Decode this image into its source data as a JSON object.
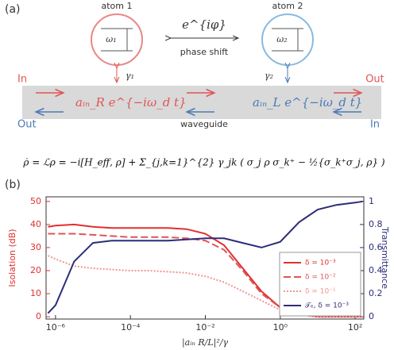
{
  "diagram": {
    "panel_a": "(a)",
    "atom1": "atom 1",
    "atom2": "atom 2",
    "omega1": "ω₁",
    "omega2": "ω₂",
    "phase": "e^{iφ}",
    "phase_label": "phase shift",
    "gamma1": "γ₁",
    "gamma2": "γ₂",
    "in_left": "In",
    "out_right": "Out",
    "out_left": "Out",
    "in_right": "In",
    "field_right": "aᵢₙ_R e^{−iω_d t}",
    "field_left": "aᵢₙ_L e^{−iω_d t}",
    "waveguide": "waveguide",
    "equation": "ρ̇ = ℒρ = −i[H_eff, ρ] + Σ_{j,k=1}^{2} γ_jk ( σ_j ρ σ_k⁺ − ½{σ_k⁺σ_j, ρ} )",
    "panel_b": "(b)"
  },
  "chart_data": {
    "type": "line",
    "xlabel": "|aᵢₙ R/L|²/γ",
    "ylabel": "Isolation (dB)",
    "y2label": "Transmittance",
    "xscale": "log",
    "xlim": [
      5.6e-07,
      170
    ],
    "xticks": [
      {
        "value": 1e-06,
        "label": "10⁻⁶"
      },
      {
        "value": 0.0001,
        "label": "10⁻⁴"
      },
      {
        "value": 0.01,
        "label": "10⁻²"
      },
      {
        "value": 1,
        "label": "10⁰"
      },
      {
        "value": 100,
        "label": "10²"
      }
    ],
    "ylim": [
      -1,
      52
    ],
    "yticks": [
      0,
      10,
      20,
      30,
      40,
      50
    ],
    "y2lim": [
      -0.02,
      1.04
    ],
    "y2ticks": [
      0,
      0.2,
      0.4,
      0.6,
      0.8,
      1
    ],
    "grid": false,
    "legend": "lower right",
    "x": [
      6.31e-07,
      1e-06,
      3.16e-06,
      1e-05,
      3.16e-05,
      0.0001,
      0.000316,
      0.001,
      0.00316,
      0.01,
      0.0316,
      0.1,
      0.316,
      1,
      3.16,
      10,
      31.6,
      100,
      158
    ],
    "series": [
      {
        "name": "δ = 10⁻³",
        "color": "#e03030",
        "style": "solid",
        "values": [
          39,
          39.5,
          40,
          39,
          38.5,
          38.5,
          38.5,
          38.5,
          38,
          36,
          31,
          21,
          11,
          4,
          1,
          0,
          0,
          0,
          0
        ]
      },
      {
        "name": "δ = 10⁻²",
        "color": "#e05555",
        "style": "dashed",
        "values": [
          36,
          36,
          36,
          35.5,
          35,
          34.5,
          34.5,
          34.5,
          34,
          33,
          29,
          20,
          10,
          4,
          1,
          0,
          0,
          0,
          0
        ]
      },
      {
        "name": "δ = 10⁻¹",
        "color": "#f09595",
        "style": "dotted",
        "values": [
          26.5,
          25,
          22,
          21,
          20.5,
          20,
          20,
          19.5,
          19,
          17.5,
          15,
          11,
          7,
          3,
          1,
          0,
          0,
          0,
          0
        ]
      },
      {
        "name": "𝒯ₑ, δ = 10⁻³",
        "color": "#2c2c7a",
        "style": "solid",
        "axis": "y2",
        "values": [
          0.03,
          0.1,
          0.48,
          0.64,
          0.66,
          0.66,
          0.66,
          0.66,
          0.67,
          0.68,
          0.68,
          0.64,
          0.6,
          0.65,
          0.82,
          0.93,
          0.97,
          0.99,
          1.0
        ]
      }
    ]
  }
}
